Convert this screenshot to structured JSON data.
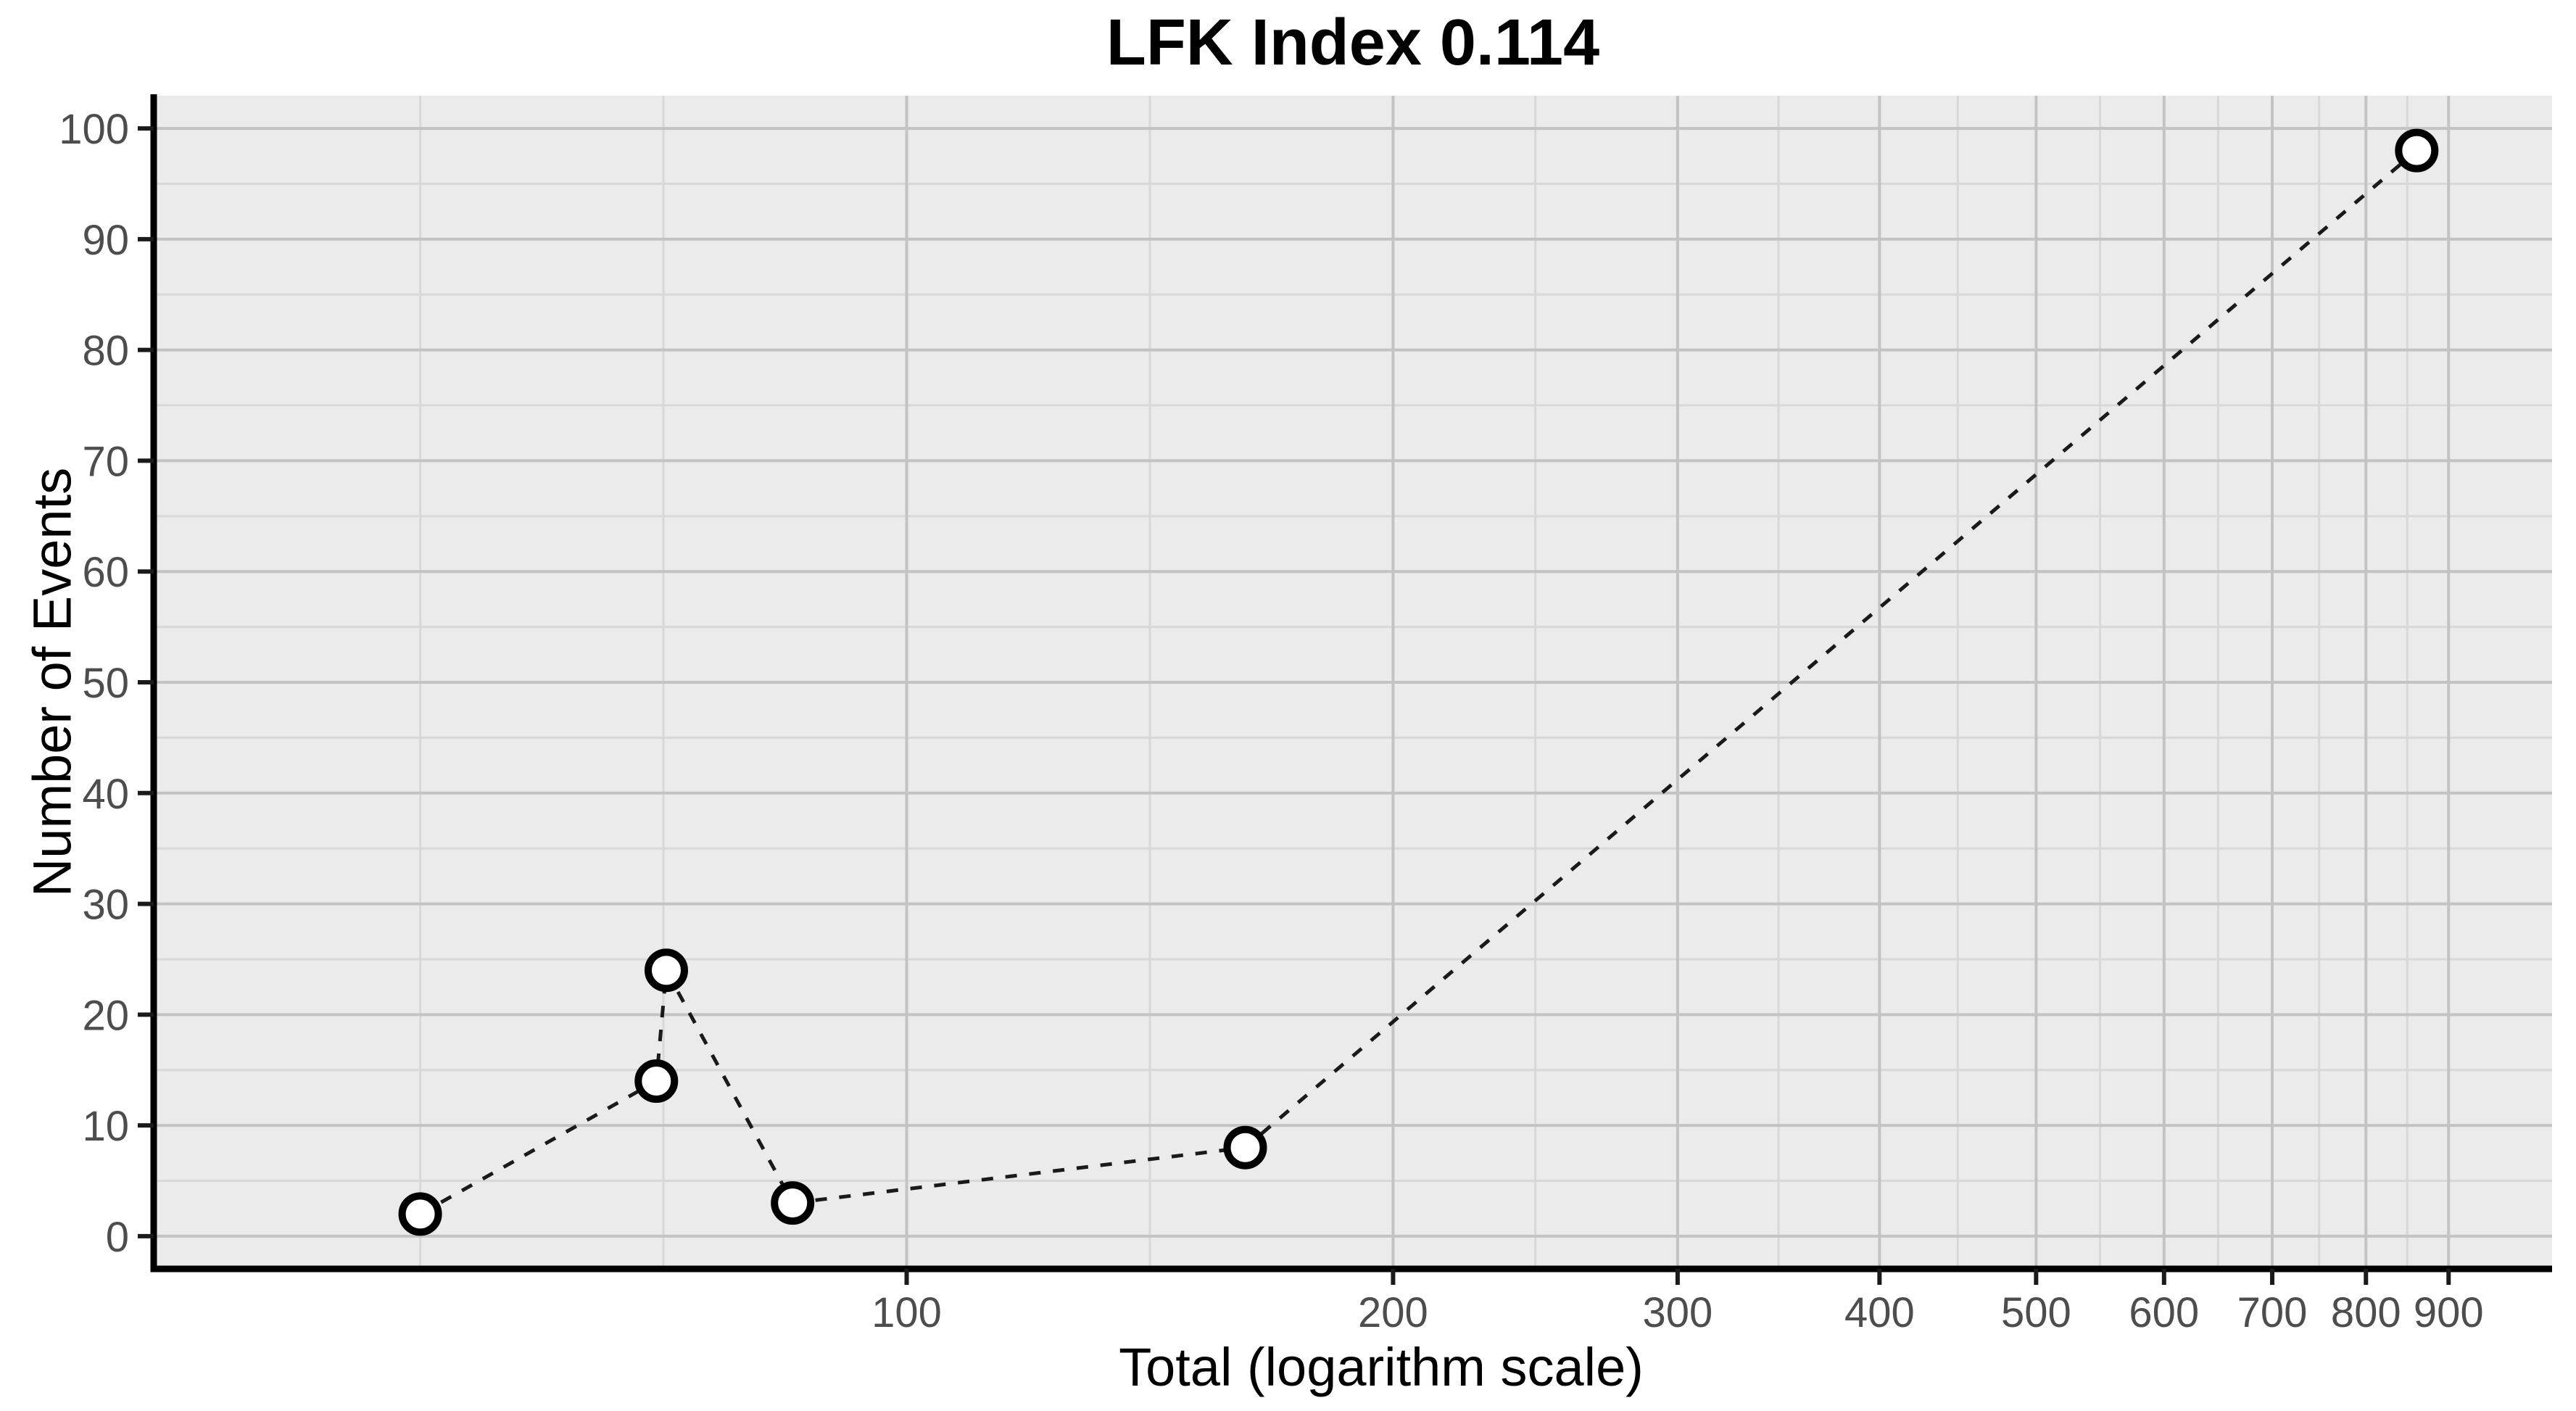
{
  "chart_data": {
    "type": "scatter",
    "title": "LFK Index 0.114",
    "xlabel": "Total (logarithm scale)",
    "ylabel": "Number of Events",
    "x_scale": "log10",
    "legend_position": "none",
    "line_style": "dashed",
    "marker_style": "open-circle",
    "points": [
      {
        "x": 50,
        "y": 2
      },
      {
        "x": 70,
        "y": 14
      },
      {
        "x": 71,
        "y": 24
      },
      {
        "x": 85,
        "y": 3
      },
      {
        "x": 162,
        "y": 8
      },
      {
        "x": 860,
        "y": 98
      }
    ],
    "x_tick_values": [
      100,
      200,
      300,
      400,
      500,
      600,
      700,
      800,
      900
    ],
    "x_tick_labels": [
      "100",
      "200",
      "300",
      "400",
      "500",
      "600",
      "700",
      "800",
      "900"
    ],
    "x_gridlines_major": [
      100,
      200,
      300,
      400,
      500,
      600,
      700,
      800,
      900
    ],
    "x_gridlines_minor": [
      50,
      70.71,
      141.42,
      244.95,
      346.41,
      447.21,
      547.72,
      648.07,
      748.33,
      848.53
    ],
    "y_tick_values": [
      0,
      10,
      20,
      30,
      40,
      50,
      60,
      70,
      80,
      90,
      100
    ],
    "y_tick_labels": [
      "0",
      "10",
      "20",
      "30",
      "40",
      "50",
      "60",
      "70",
      "80",
      "90",
      "100"
    ],
    "y_gridlines_major": [
      0,
      10,
      20,
      30,
      40,
      50,
      60,
      70,
      80,
      90,
      100
    ],
    "y_gridlines_minor": [
      5,
      15,
      25,
      35,
      45,
      55,
      65,
      75,
      85,
      95
    ],
    "xlim": [
      34.2,
      1043
    ],
    "ylim": [
      -2.95,
      102.95
    ],
    "grid": true
  },
  "style": {
    "panel_background": "#EBEBEB",
    "grid_major_color": "#C3C3C3",
    "grid_minor_color": "#D8D8D8",
    "axis_line_color": "#000000",
    "tick_mark_color": "#1A1A1A",
    "tick_label_color": "#4D4D4D",
    "title_color": "#000000",
    "series_line_color": "#1A1A1A",
    "marker_fill": "#FFFFFF",
    "marker_stroke": "#000000"
  }
}
